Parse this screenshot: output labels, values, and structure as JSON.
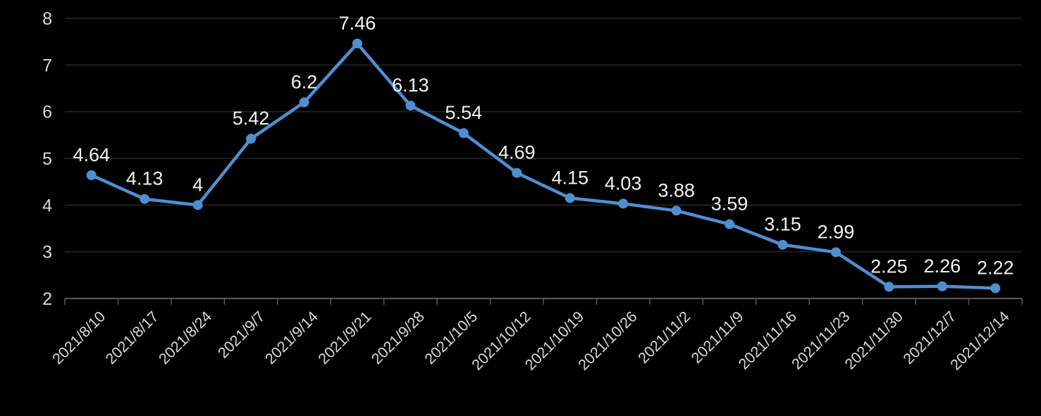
{
  "chart_data": {
    "type": "line",
    "title": "",
    "xlabel": "",
    "ylabel": "",
    "categories": [
      "2021/8/10",
      "2021/8/17",
      "2021/8/24",
      "2021/9/7",
      "2021/9/14",
      "2021/9/21",
      "2021/9/28",
      "2021/10/5",
      "2021/10/12",
      "2021/10/19",
      "2021/10/26",
      "2021/11/2",
      "2021/11/9",
      "2021/11/16",
      "2021/11/23",
      "2021/11/30",
      "2021/12/7",
      "2021/12/14"
    ],
    "values": [
      4.64,
      4.13,
      4,
      5.42,
      6.2,
      7.46,
      6.13,
      5.54,
      4.69,
      4.15,
      4.03,
      3.88,
      3.59,
      3.15,
      2.99,
      2.25,
      2.26,
      2.22
    ],
    "value_labels": [
      "4.64",
      "4.13",
      "4",
      "5.42",
      "6.2",
      "7.46",
      "6.13",
      "5.54",
      "4.69",
      "4.15",
      "4.03",
      "3.88",
      "3.59",
      "3.15",
      "2.99",
      "2.25",
      "2.26",
      "2.22"
    ],
    "y_ticks": [
      "2",
      "3",
      "4",
      "5",
      "6",
      "7",
      "8"
    ],
    "ylim": [
      2,
      8
    ],
    "grid": "on",
    "legend": "none",
    "colors": {
      "background": "#000000",
      "line": "#4f8fd0",
      "marker": "#4f8fd0",
      "data_label": "#f2f2f2",
      "axis_label": "#d9d9d9",
      "gridline": "#282828",
      "axis_line": "#595959"
    }
  }
}
